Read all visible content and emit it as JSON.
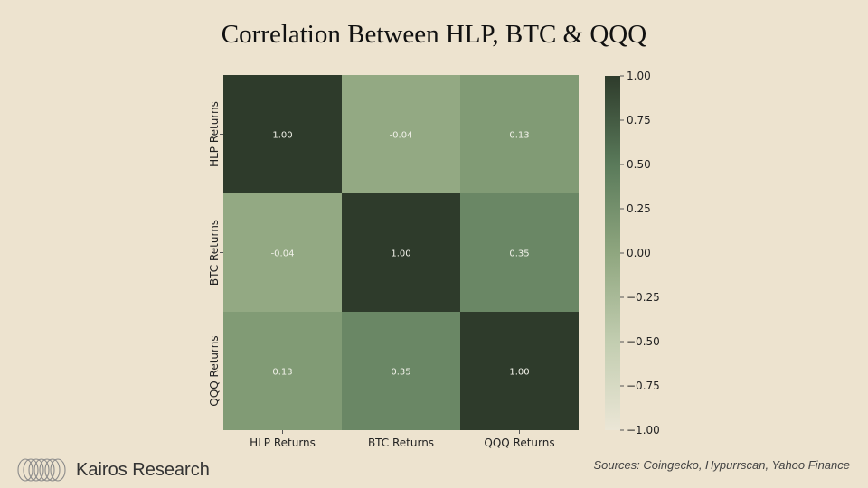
{
  "chart_data": {
    "type": "heatmap",
    "title": "Correlation Between HLP, BTC & QQQ",
    "x_labels": [
      "HLP Returns",
      "BTC Returns",
      "QQQ Returns"
    ],
    "y_labels": [
      "HLP Returns",
      "BTC Returns",
      "QQQ Returns"
    ],
    "values": [
      [
        1.0,
        -0.04,
        0.13
      ],
      [
        -0.04,
        1.0,
        0.35
      ],
      [
        0.13,
        0.35,
        1.0
      ]
    ],
    "cell_labels": [
      [
        "1.00",
        "-0.04",
        "0.13"
      ],
      [
        "-0.04",
        "1.00",
        "0.35"
      ],
      [
        "0.13",
        "0.35",
        "1.00"
      ]
    ],
    "colorbar": {
      "range": [
        -1.0,
        1.0
      ],
      "ticks": [
        1.0,
        0.75,
        0.5,
        0.25,
        0.0,
        -0.25,
        -0.5,
        -0.75,
        -1.0
      ],
      "tick_labels": [
        "1.00",
        "0.75",
        "0.50",
        "0.25",
        "0.00",
        "−0.25",
        "−0.50",
        "−0.75",
        "−1.00"
      ],
      "colors": [
        "#ebe6d6",
        "#c2cdb0",
        "#8fa67f",
        "#5a7a5a",
        "#2e3b2b"
      ]
    }
  },
  "footer": {
    "brand": "Kairos Research",
    "sources": "Sources: Coingecko, Hypurrscan, Yahoo Finance"
  }
}
